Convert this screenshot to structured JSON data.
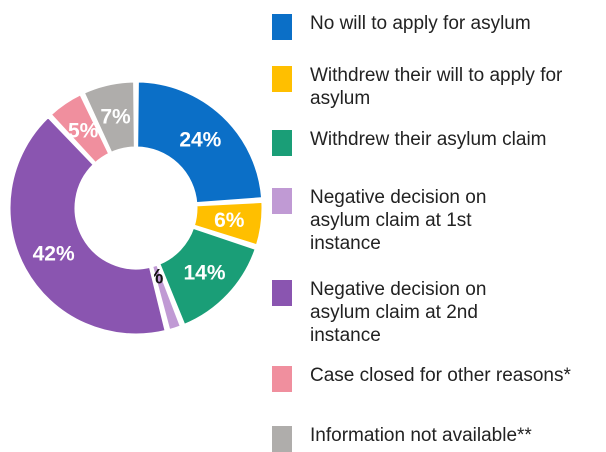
{
  "chart_data": {
    "type": "pie",
    "style": "donut",
    "legend_position": "right",
    "slices": [
      {
        "label": "No will to apply for asylum",
        "value": 24,
        "value_label": "24%",
        "color": "#0B6FC7",
        "label_color": "#ffffff"
      },
      {
        "label": "Withdrew their will to apply for asylum",
        "value": 6,
        "value_label": "6%",
        "color": "#FFBF00",
        "label_color": "#ffffff"
      },
      {
        "label": "Withdrew their asylum claim",
        "value": 14,
        "value_label": "14%",
        "color": "#1A9E77",
        "label_color": "#ffffff"
      },
      {
        "label": "Negative decision on asylum claim at 1st instance",
        "value": 2,
        "value_label": "2%",
        "color": "#C09AD4",
        "label_color": "#111111"
      },
      {
        "label": "Negative decision on asylum claim at 2nd instance",
        "value": 42,
        "value_label": "42%",
        "color": "#8A55B0",
        "label_color": "#ffffff"
      },
      {
        "label": "Case closed for other reasons*",
        "value": 5,
        "value_label": "5%",
        "color": "#F08F9E",
        "label_color": "#ffffff"
      },
      {
        "label": "Information not available**",
        "value": 7,
        "value_label": "7%",
        "color": "#AFADAB",
        "label_color": "#ffffff"
      }
    ]
  }
}
